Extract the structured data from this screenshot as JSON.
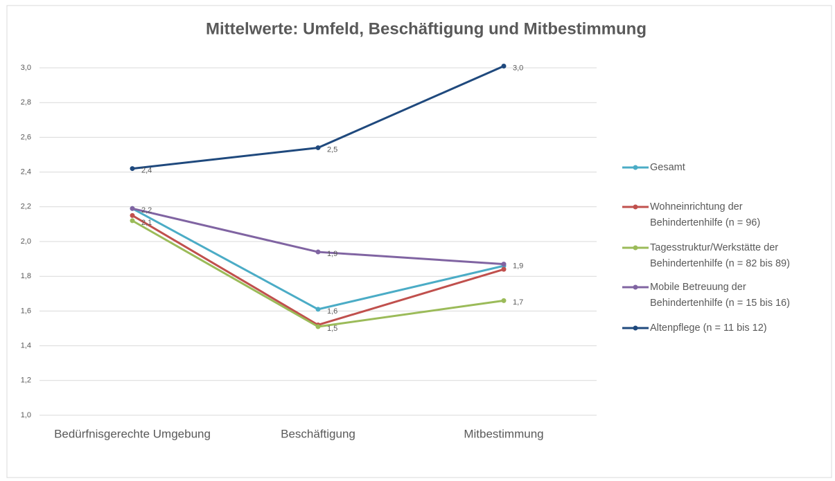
{
  "chart_data": {
    "type": "line",
    "title": "Mittelwerte: Umfeld, Beschäftigung und Mitbestimmung",
    "categories": [
      "Bedürfnisgerechte Umgebung",
      "Beschäftigung",
      "Mitbestimmung"
    ],
    "ylim": [
      1.0,
      3.0
    ],
    "yticks": [
      {
        "value": 1.0,
        "label": "1,0"
      },
      {
        "value": 1.2,
        "label": "1,2"
      },
      {
        "value": 1.4,
        "label": "1,4"
      },
      {
        "value": 1.6,
        "label": "1,6"
      },
      {
        "value": 1.8,
        "label": "1,8"
      },
      {
        "value": 2.0,
        "label": "2,0"
      },
      {
        "value": 2.2,
        "label": "2,2"
      },
      {
        "value": 2.4,
        "label": "2,4"
      },
      {
        "value": 2.6,
        "label": "2,6"
      },
      {
        "value": 2.8,
        "label": "2,8"
      },
      {
        "value": 3.0,
        "label": "3,0"
      }
    ],
    "grid": true,
    "legend": "right",
    "series": [
      {
        "name": "Gesamt",
        "color": "#4bacc6",
        "values": [
          2.19,
          1.61,
          1.86
        ],
        "value_labels": [
          null,
          "1,6",
          null
        ]
      },
      {
        "name": "Wohneinrichtung der Behindertenhilfe (n = 96)",
        "color": "#c0504d",
        "values": [
          2.15,
          1.52,
          1.84
        ],
        "value_labels": [
          null,
          null,
          null
        ]
      },
      {
        "name": "Tagesstruktur/Werkstätte der Behindertenhilfe (n = 82 bis 89)",
        "color": "#9bbb59",
        "values": [
          2.12,
          1.51,
          1.66
        ],
        "value_labels": [
          "2,1",
          "1,5",
          "1,7"
        ]
      },
      {
        "name": "Mobile Betreuung der Behindertenhilfe (n = 15 bis 16)",
        "color": "#8064a2",
        "values": [
          2.19,
          1.94,
          1.87
        ],
        "value_labels": [
          "2,2",
          "1,9",
          "1,9"
        ]
      },
      {
        "name": "Altenpflege (n = 11 bis 12)",
        "color": "#1f497d",
        "values": [
          2.42,
          2.54,
          3.01
        ],
        "value_labels": [
          "2,4",
          "2,5",
          "3,0"
        ]
      }
    ]
  }
}
